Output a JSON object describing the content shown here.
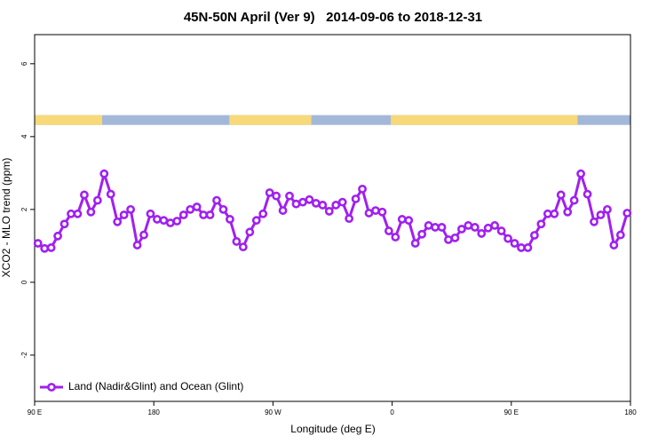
{
  "chart_data": {
    "type": "line",
    "title": "45N-50N April (Ver 9)   2014-09-06 to 2018-12-31",
    "x_label": "Longitude (deg E)",
    "y_label": "XCO2 - MLO trend (ppm)",
    "xlim": [
      90,
      540
    ],
    "ylim": [
      -3.27,
      6.8
    ],
    "xticks": [
      {
        "value": 90,
        "label": "90 E"
      },
      180,
      {
        "value": 270,
        "label": "90 W"
      },
      {
        "value": 360,
        "label": "0"
      },
      {
        "value": 450,
        "label": "90 E"
      },
      {
        "value": 540,
        "label": "180"
      }
    ],
    "yticks": [
      -2,
      0,
      2,
      4,
      6
    ],
    "legend": "bottom-left",
    "strip": {
      "ylim": [
        4.32,
        4.59
      ],
      "ocean_color": "#a3b8d9",
      "land_color": "#f7d97a",
      "land_ranges": [
        [
          90,
          141
        ],
        [
          237,
          299
        ],
        [
          359,
          500
        ]
      ]
    },
    "x": [
      92.5,
      97.5,
      102.5,
      107.5,
      112.5,
      117.5,
      122.5,
      127.5,
      132.5,
      137.5,
      142.5,
      147.5,
      152.5,
      157.5,
      162.5,
      167.5,
      172.5,
      177.5,
      182.5,
      187.5,
      192.5,
      197.5,
      202.5,
      207.5,
      212.5,
      217.5,
      222.5,
      227.5,
      232.5,
      237.5,
      242.5,
      247.5,
      252.5,
      257.5,
      262.5,
      267.5,
      272.5,
      277.5,
      282.5,
      287.5,
      292.5,
      297.5,
      302.5,
      307.5,
      312.5,
      317.5,
      322.5,
      327.5,
      332.5,
      337.5,
      342.5,
      347.5,
      352.5,
      357.5,
      362.5,
      367.5,
      372.5,
      377.5,
      382.5,
      387.5,
      392.5,
      397.5,
      402.5,
      407.5,
      412.5,
      417.5,
      422.5,
      427.5,
      432.5,
      437.5,
      442.5,
      447.5,
      452.5,
      457.5,
      462.5,
      467.5,
      472.5,
      477.5,
      482.5,
      487.5,
      492.5,
      497.5,
      502.5,
      507.5,
      512.5,
      517.5,
      522.5,
      527.5,
      532.5,
      537.5
    ],
    "series": [
      {
        "name": "Land (Nadir&Glint) and Ocean (Glint)",
        "color": "#a020f0",
        "values": [
          1.07,
          0.93,
          0.95,
          1.27,
          1.6,
          1.88,
          1.88,
          2.4,
          1.93,
          2.25,
          2.98,
          2.42,
          1.66,
          1.85,
          2.0,
          1.02,
          1.3,
          1.88,
          1.73,
          1.7,
          1.63,
          1.68,
          1.85,
          2.0,
          2.07,
          1.85,
          1.85,
          2.25,
          2.0,
          1.73,
          1.12,
          0.97,
          1.38,
          1.7,
          1.88,
          2.46,
          2.37,
          1.97,
          2.37,
          2.15,
          2.2,
          2.27,
          2.17,
          2.12,
          1.95,
          2.12,
          2.2,
          1.75,
          2.29,
          2.56,
          1.9,
          1.97,
          1.93,
          1.41,
          1.24,
          1.73,
          1.7,
          1.07,
          1.32,
          1.56,
          1.51,
          1.51,
          1.17,
          1.22,
          1.46,
          1.56,
          1.51,
          1.34,
          1.49,
          1.56,
          1.41,
          1.2,
          1.07,
          0.95,
          0.95,
          1.29,
          1.6,
          1.88,
          1.88,
          2.4,
          1.93,
          2.25,
          2.98,
          2.42,
          1.66,
          1.85,
          2.0,
          1.02,
          1.3,
          1.9
        ]
      }
    ]
  }
}
